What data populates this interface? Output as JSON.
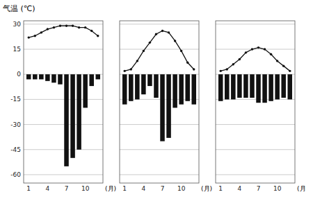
{
  "chart_data": [
    {
      "type": "line",
      "ylabel": "气温 (℃)",
      "xlabel": "(月)",
      "x": [
        1,
        2,
        3,
        4,
        5,
        6,
        7,
        8,
        9,
        10,
        11,
        12
      ],
      "xlim": [
        0.2,
        12.8
      ],
      "xticks": [
        1,
        4,
        7,
        10
      ],
      "ylim": [
        -65,
        32
      ],
      "yticks": [
        30,
        15,
        0,
        -15,
        -30,
        -45,
        -60
      ],
      "grid": true,
      "series": [
        {
          "type": "line",
          "color": "#111111",
          "marker": "circle",
          "values": [
            22,
            23,
            25,
            27,
            28,
            29,
            29,
            29,
            28,
            28,
            26,
            23
          ]
        },
        {
          "type": "bar",
          "color": "#111111",
          "values": [
            -3,
            -3,
            -3,
            -4,
            -5,
            -6,
            -55,
            -50,
            -45,
            -20,
            -7,
            -3
          ]
        }
      ]
    },
    {
      "type": "line",
      "xlabel": "(月)",
      "tick_labels": "x",
      "x": [
        1,
        2,
        3,
        4,
        5,
        6,
        7,
        8,
        9,
        10,
        11,
        12
      ],
      "xlim": [
        0.2,
        12.8
      ],
      "xticks": [
        1,
        4,
        7,
        10
      ],
      "ylim": [
        -65,
        32
      ],
      "yticks": [
        30,
        15,
        0,
        -15,
        -30,
        -45,
        -60
      ],
      "grid": true,
      "series": [
        {
          "type": "line",
          "color": "#111111",
          "marker": "circle",
          "values": [
            2,
            3,
            8,
            14,
            19,
            24,
            26,
            25,
            20,
            14,
            7,
            3
          ]
        },
        {
          "type": "bar",
          "color": "#111111",
          "values": [
            -18,
            -16,
            -15,
            -12,
            -7,
            -14,
            -40,
            -38,
            -20,
            -18,
            -16,
            -18
          ]
        }
      ]
    },
    {
      "type": "line",
      "xlabel": "(月",
      "tick_labels": "x",
      "x": [
        1,
        2,
        3,
        4,
        5,
        6,
        7,
        8,
        9,
        10,
        11,
        12
      ],
      "xlim": [
        0.2,
        12.8
      ],
      "xticks": [
        1,
        4,
        7,
        10
      ],
      "ylim": [
        -65,
        32
      ],
      "yticks": [
        30,
        15,
        0,
        -15,
        -30,
        -45,
        -60
      ],
      "grid": true,
      "series": [
        {
          "type": "line",
          "color": "#111111",
          "marker": "circle",
          "values": [
            2,
            3,
            6,
            9,
            13,
            15,
            16,
            15,
            12,
            8,
            5,
            2
          ]
        },
        {
          "type": "bar",
          "color": "#111111",
          "values": [
            -16,
            -15,
            -15,
            -14,
            -14,
            -14,
            -17,
            -17,
            -16,
            -15,
            -14,
            -15
          ]
        }
      ]
    }
  ]
}
